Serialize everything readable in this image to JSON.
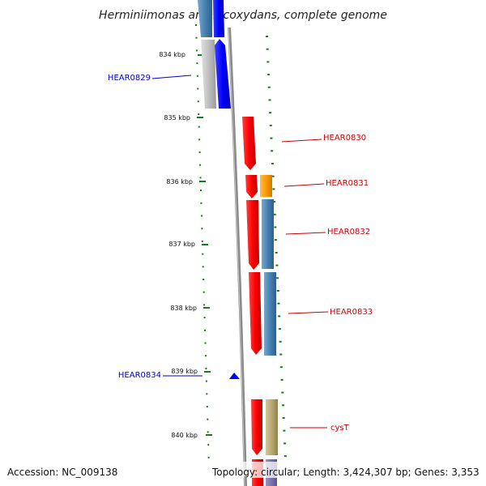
{
  "title": "Herminiimonas arsenicoxydans, complete genome",
  "footer": {
    "accession": "Accession: NC_009138",
    "topology": "Topology: circular; Length: 3,424,307 bp; Genes: 3,353"
  },
  "colors": {
    "tick": "#1a7a1a",
    "reverse_gene": "#0000cc",
    "forward_gene": "#cc0000",
    "backbone": "#808080",
    "cds_forward": "#ff0000",
    "cds_reverse": "#0000ff",
    "cog_steelblue": "#4682b4",
    "cog_orange": "#ff9900",
    "cog_khaki": "#b8a870",
    "cog_gray": "#c0c0c0"
  },
  "kbp_labels": [
    "834 kbp",
    "835 kbp",
    "836 kbp",
    "837 kbp",
    "838 kbp",
    "839 kbp",
    "840 kbp"
  ],
  "genes": [
    {
      "name": "HEAR0829",
      "strand": "reverse"
    },
    {
      "name": "HEAR0830",
      "strand": "forward"
    },
    {
      "name": "HEAR0831",
      "strand": "forward"
    },
    {
      "name": "HEAR0832",
      "strand": "forward"
    },
    {
      "name": "HEAR0833",
      "strand": "forward"
    },
    {
      "name": "HEAR0834",
      "strand": "reverse"
    },
    {
      "name": "cysT",
      "strand": "forward"
    }
  ]
}
